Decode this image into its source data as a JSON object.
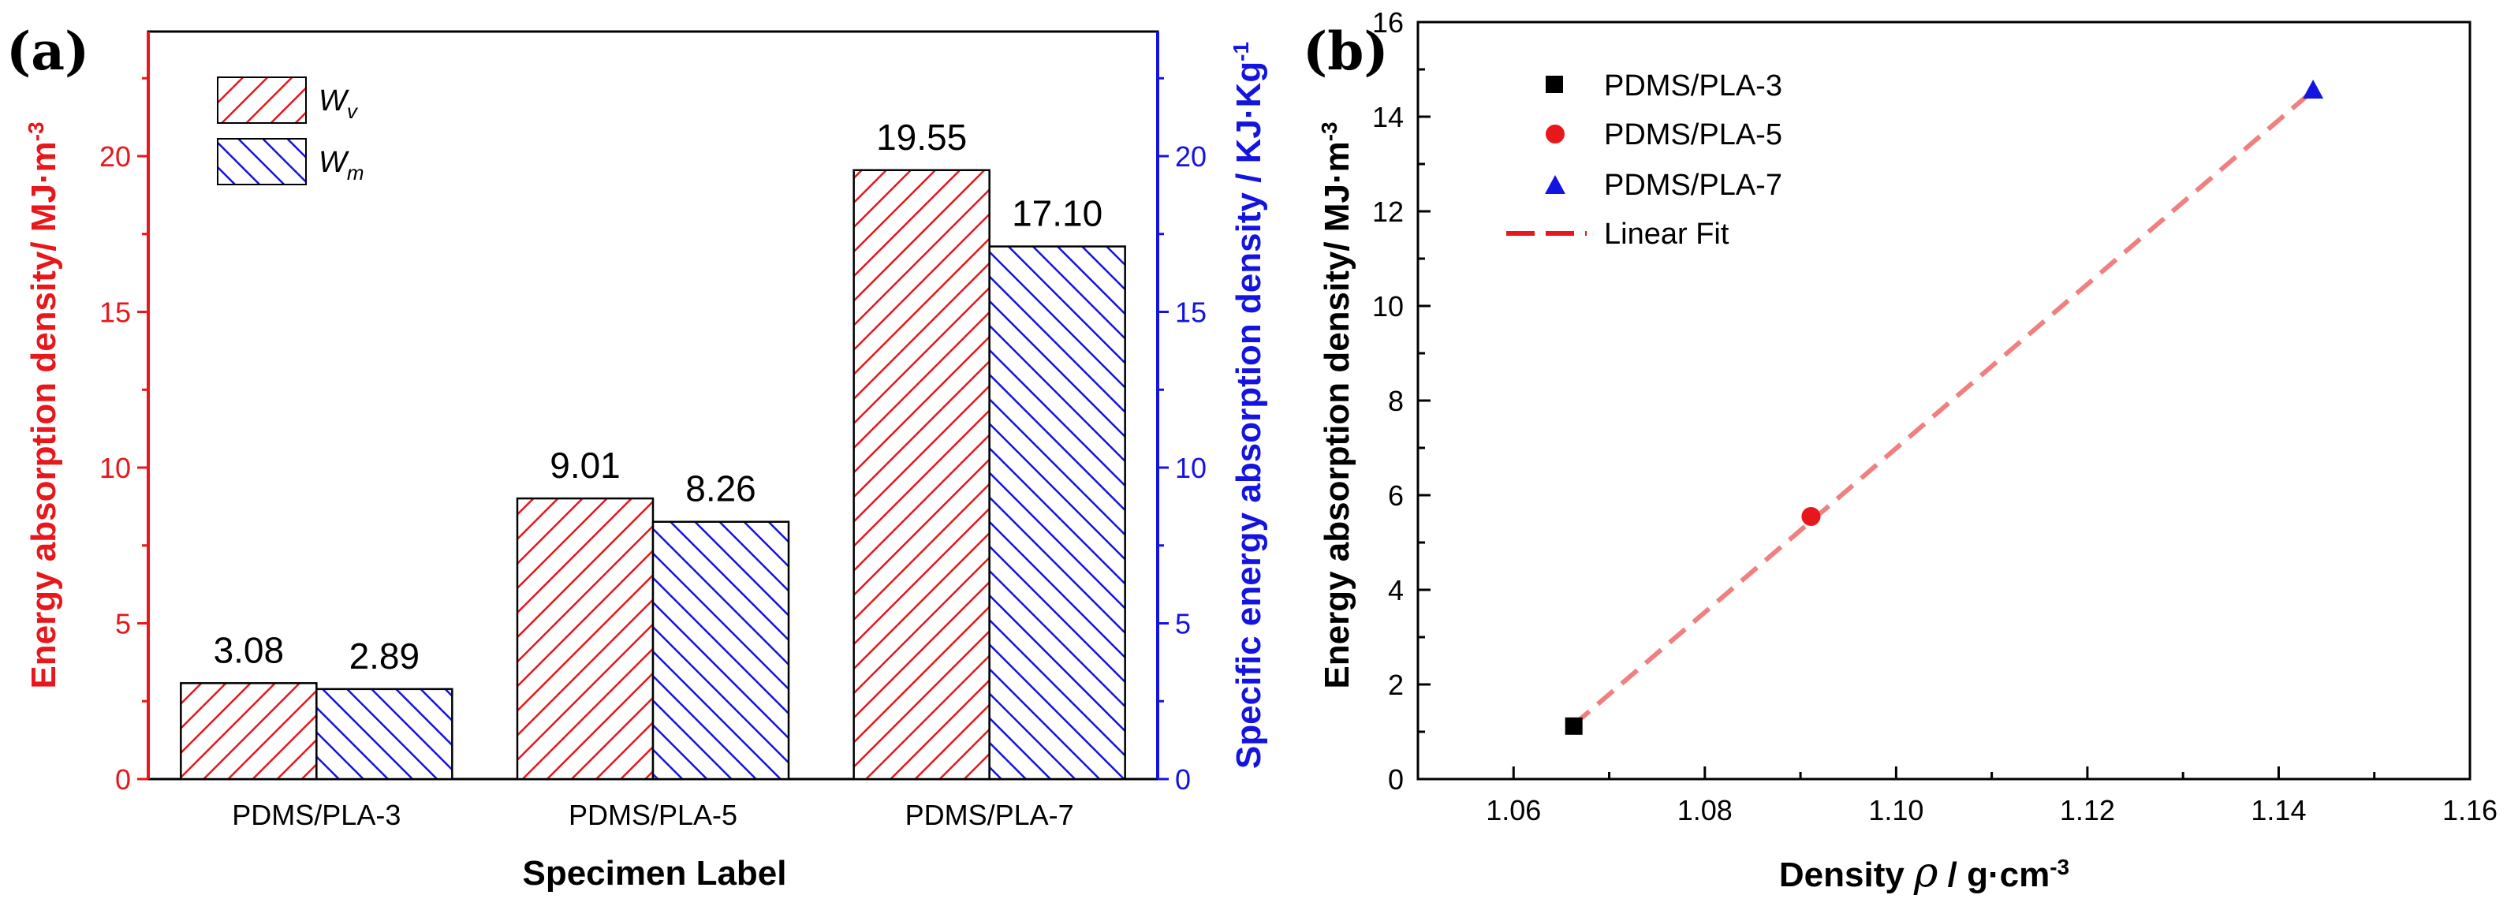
{
  "chart_data": [
    {
      "panel": "(a)",
      "type": "bar",
      "categories": [
        "PDMS/PLA-3",
        "PDMS/PLA-5",
        "PDMS/PLA-7"
      ],
      "series": [
        {
          "name": "W",
          "subscript": "v",
          "values": [
            3.08,
            9.01,
            19.55
          ],
          "color": "#e8171b",
          "axis": "left"
        },
        {
          "name": "W",
          "subscript": "m",
          "values": [
            2.89,
            8.26,
            17.1
          ],
          "color": "#1414e0",
          "axis": "right"
        }
      ],
      "data_labels": [
        "3.08",
        "2.89",
        "9.01",
        "8.26",
        "19.55",
        "17.10"
      ],
      "xlabel": "Specimen Label",
      "ylabel_left": "Energy absorption density/ MJ·m",
      "ylabel_left_sup": "-3",
      "ylabel_right": "Specific energy absorption density / KJ·Kg",
      "ylabel_right_sup": "-1",
      "ylim": [
        0,
        24
      ],
      "y_ticks": [
        "0",
        "5",
        "10",
        "15",
        "20"
      ],
      "left_axis_color": "#e8171b",
      "right_axis_color": "#1414e0",
      "legend_position": "top-left"
    },
    {
      "panel": "(b)",
      "type": "scatter",
      "series": [
        {
          "name": "PDMS/PLA-3",
          "marker": "square",
          "color": "#000000",
          "x": [
            1.0663
          ],
          "y": [
            1.12
          ]
        },
        {
          "name": "PDMS/PLA-5",
          "marker": "circle",
          "color": "#e8171b",
          "x": [
            1.0911
          ],
          "y": [
            5.55
          ]
        },
        {
          "name": "PDMS/PLA-7",
          "marker": "triangle",
          "color": "#1414e0",
          "x": [
            1.1436
          ],
          "y": [
            14.55
          ]
        }
      ],
      "fit": {
        "name": "Linear Fit",
        "x": [
          1.0663,
          1.1436
        ],
        "y": [
          1.15,
          14.55
        ],
        "color": "#f08080"
      },
      "xlabel": "Density",
      "xlabel_symbol": "ρ",
      "xlabel_unit": " / g·cm",
      "xlabel_sup": "-3",
      "ylabel": "Energy absorption density/ MJ·m",
      "ylabel_sup": "-3",
      "xlim": [
        1.05,
        1.16
      ],
      "ylim": [
        0,
        16
      ],
      "x_ticks": [
        "1.06",
        "1.08",
        "1.10",
        "1.12",
        "1.14",
        "1.16"
      ],
      "y_ticks": [
        "0",
        "2",
        "4",
        "6",
        "8",
        "10",
        "12",
        "14",
        "16"
      ],
      "legend_position": "top-left"
    }
  ]
}
